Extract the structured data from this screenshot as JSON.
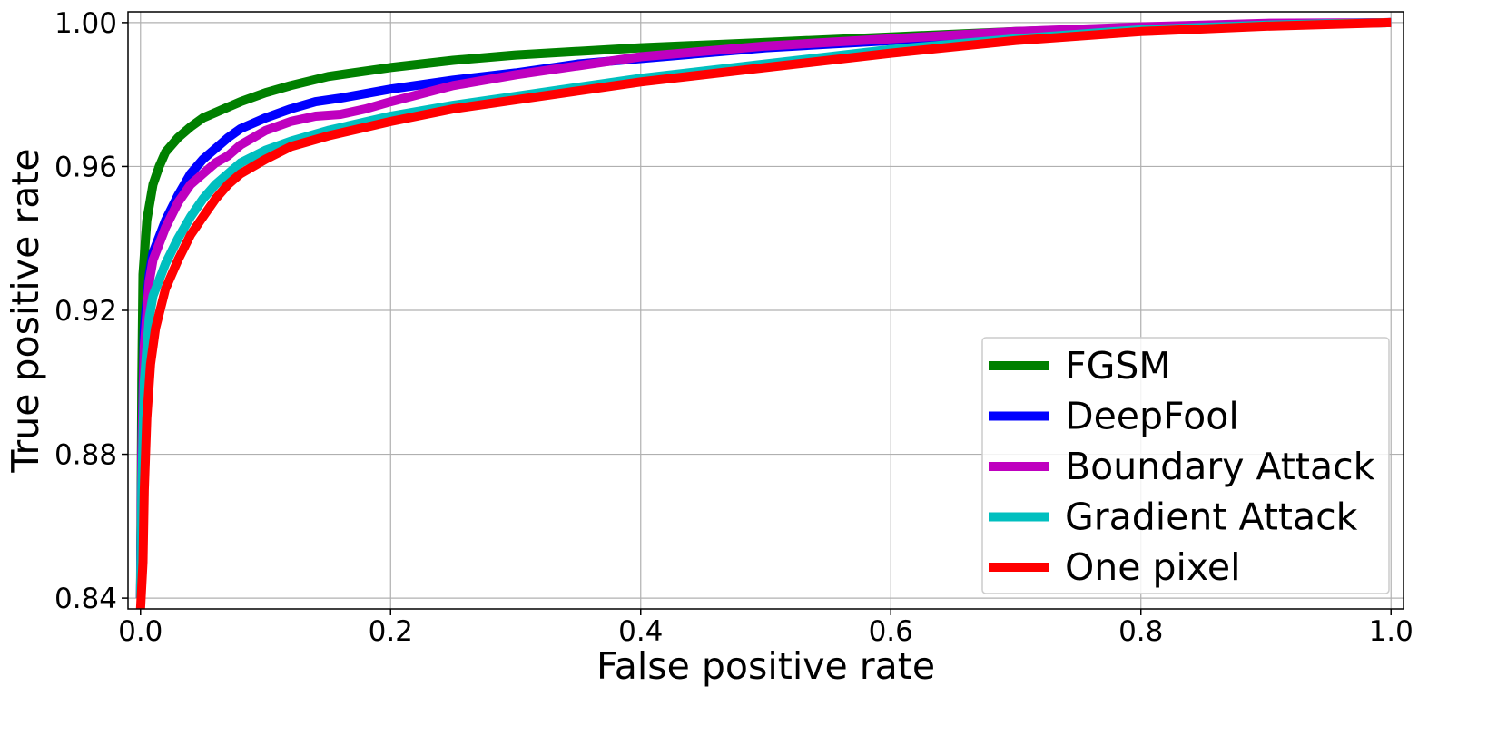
{
  "chart_data": {
    "type": "line",
    "title": "",
    "xlabel": "False positive rate",
    "ylabel": "True positive rate",
    "xlim": [
      -0.01,
      1.01
    ],
    "ylim": [
      0.837,
      1.003
    ],
    "xticks": [
      0.0,
      0.2,
      0.4,
      0.6,
      0.8,
      1.0
    ],
    "xtick_labels": [
      "0.0",
      "0.2",
      "0.4",
      "0.6",
      "0.8",
      "1.0"
    ],
    "yticks": [
      0.84,
      0.88,
      0.92,
      0.96,
      1.0
    ],
    "ytick_labels": [
      "0.84",
      "0.88",
      "0.92",
      "0.96",
      "1.00"
    ],
    "grid": true,
    "legend_position": "lower-right",
    "series": [
      {
        "name": "FGSM",
        "color": "#008000",
        "points": [
          [
            0,
            0.84
          ],
          [
            0.001,
            0.9
          ],
          [
            0.002,
            0.93
          ],
          [
            0.005,
            0.945
          ],
          [
            0.01,
            0.955
          ],
          [
            0.015,
            0.96
          ],
          [
            0.02,
            0.964
          ],
          [
            0.03,
            0.968
          ],
          [
            0.04,
            0.971
          ],
          [
            0.05,
            0.9735
          ],
          [
            0.06,
            0.975
          ],
          [
            0.07,
            0.9765
          ],
          [
            0.08,
            0.978
          ],
          [
            0.1,
            0.9805
          ],
          [
            0.12,
            0.9825
          ],
          [
            0.15,
            0.985
          ],
          [
            0.2,
            0.9875
          ],
          [
            0.25,
            0.9895
          ],
          [
            0.3,
            0.991
          ],
          [
            0.4,
            0.993
          ],
          [
            0.5,
            0.9945
          ],
          [
            0.6,
            0.996
          ],
          [
            0.7,
            0.9975
          ],
          [
            0.8,
            0.9985
          ],
          [
            0.9,
            0.9993
          ],
          [
            1.0,
            1.0
          ]
        ]
      },
      {
        "name": "DeepFool",
        "color": "#0000ff",
        "points": [
          [
            0,
            0.84
          ],
          [
            0.001,
            0.88
          ],
          [
            0.003,
            0.915
          ],
          [
            0.007,
            0.93
          ],
          [
            0.01,
            0.936
          ],
          [
            0.02,
            0.945
          ],
          [
            0.03,
            0.952
          ],
          [
            0.04,
            0.958
          ],
          [
            0.05,
            0.962
          ],
          [
            0.06,
            0.965
          ],
          [
            0.07,
            0.968
          ],
          [
            0.08,
            0.9705
          ],
          [
            0.1,
            0.9735
          ],
          [
            0.12,
            0.976
          ],
          [
            0.14,
            0.978
          ],
          [
            0.16,
            0.979
          ],
          [
            0.2,
            0.9815
          ],
          [
            0.25,
            0.984
          ],
          [
            0.3,
            0.986
          ],
          [
            0.35,
            0.9885
          ],
          [
            0.4,
            0.99
          ],
          [
            0.5,
            0.993
          ],
          [
            0.6,
            0.995
          ],
          [
            0.7,
            0.997
          ],
          [
            0.8,
            0.9985
          ],
          [
            0.9,
            0.9995
          ],
          [
            1.0,
            1.0
          ]
        ]
      },
      {
        "name": "Boundary Attack",
        "color": "#bf00bf",
        "points": [
          [
            0,
            0.84
          ],
          [
            0.001,
            0.88
          ],
          [
            0.003,
            0.91
          ],
          [
            0.007,
            0.928
          ],
          [
            0.01,
            0.934
          ],
          [
            0.02,
            0.943
          ],
          [
            0.03,
            0.95
          ],
          [
            0.04,
            0.955
          ],
          [
            0.05,
            0.958
          ],
          [
            0.06,
            0.961
          ],
          [
            0.07,
            0.963
          ],
          [
            0.08,
            0.966
          ],
          [
            0.1,
            0.97
          ],
          [
            0.12,
            0.9725
          ],
          [
            0.14,
            0.974
          ],
          [
            0.16,
            0.9745
          ],
          [
            0.18,
            0.976
          ],
          [
            0.2,
            0.978
          ],
          [
            0.25,
            0.9825
          ],
          [
            0.3,
            0.9855
          ],
          [
            0.35,
            0.988
          ],
          [
            0.4,
            0.9905
          ],
          [
            0.5,
            0.9935
          ],
          [
            0.6,
            0.9955
          ],
          [
            0.7,
            0.9975
          ],
          [
            0.8,
            0.9988
          ],
          [
            0.9,
            0.9998
          ],
          [
            1.0,
            1.0
          ]
        ]
      },
      {
        "name": "Gradient Attack",
        "color": "#00bfbf",
        "points": [
          [
            0,
            0.84
          ],
          [
            0.001,
            0.87
          ],
          [
            0.003,
            0.9
          ],
          [
            0.007,
            0.918
          ],
          [
            0.01,
            0.924
          ],
          [
            0.02,
            0.933
          ],
          [
            0.03,
            0.94
          ],
          [
            0.04,
            0.946
          ],
          [
            0.05,
            0.951
          ],
          [
            0.06,
            0.955
          ],
          [
            0.07,
            0.958
          ],
          [
            0.08,
            0.961
          ],
          [
            0.1,
            0.9645
          ],
          [
            0.12,
            0.967
          ],
          [
            0.15,
            0.97
          ],
          [
            0.2,
            0.974
          ],
          [
            0.25,
            0.977
          ],
          [
            0.3,
            0.9795
          ],
          [
            0.35,
            0.982
          ],
          [
            0.4,
            0.9845
          ],
          [
            0.5,
            0.9885
          ],
          [
            0.6,
            0.9925
          ],
          [
            0.7,
            0.9955
          ],
          [
            0.8,
            0.998
          ],
          [
            0.9,
            0.9993
          ],
          [
            1.0,
            1.0
          ]
        ]
      },
      {
        "name": "One pixel",
        "color": "#ff0000",
        "points": [
          [
            0,
            0.837
          ],
          [
            0.002,
            0.85
          ],
          [
            0.003,
            0.87
          ],
          [
            0.005,
            0.89
          ],
          [
            0.008,
            0.905
          ],
          [
            0.012,
            0.915
          ],
          [
            0.02,
            0.926
          ],
          [
            0.03,
            0.934
          ],
          [
            0.04,
            0.941
          ],
          [
            0.05,
            0.946
          ],
          [
            0.06,
            0.951
          ],
          [
            0.07,
            0.955
          ],
          [
            0.08,
            0.958
          ],
          [
            0.1,
            0.962
          ],
          [
            0.12,
            0.9655
          ],
          [
            0.15,
            0.9685
          ],
          [
            0.2,
            0.9725
          ],
          [
            0.25,
            0.976
          ],
          [
            0.3,
            0.9785
          ],
          [
            0.35,
            0.981
          ],
          [
            0.4,
            0.9835
          ],
          [
            0.5,
            0.9875
          ],
          [
            0.6,
            0.9915
          ],
          [
            0.7,
            0.995
          ],
          [
            0.8,
            0.9975
          ],
          [
            0.9,
            0.999
          ],
          [
            1.0,
            1.0
          ]
        ]
      }
    ]
  }
}
